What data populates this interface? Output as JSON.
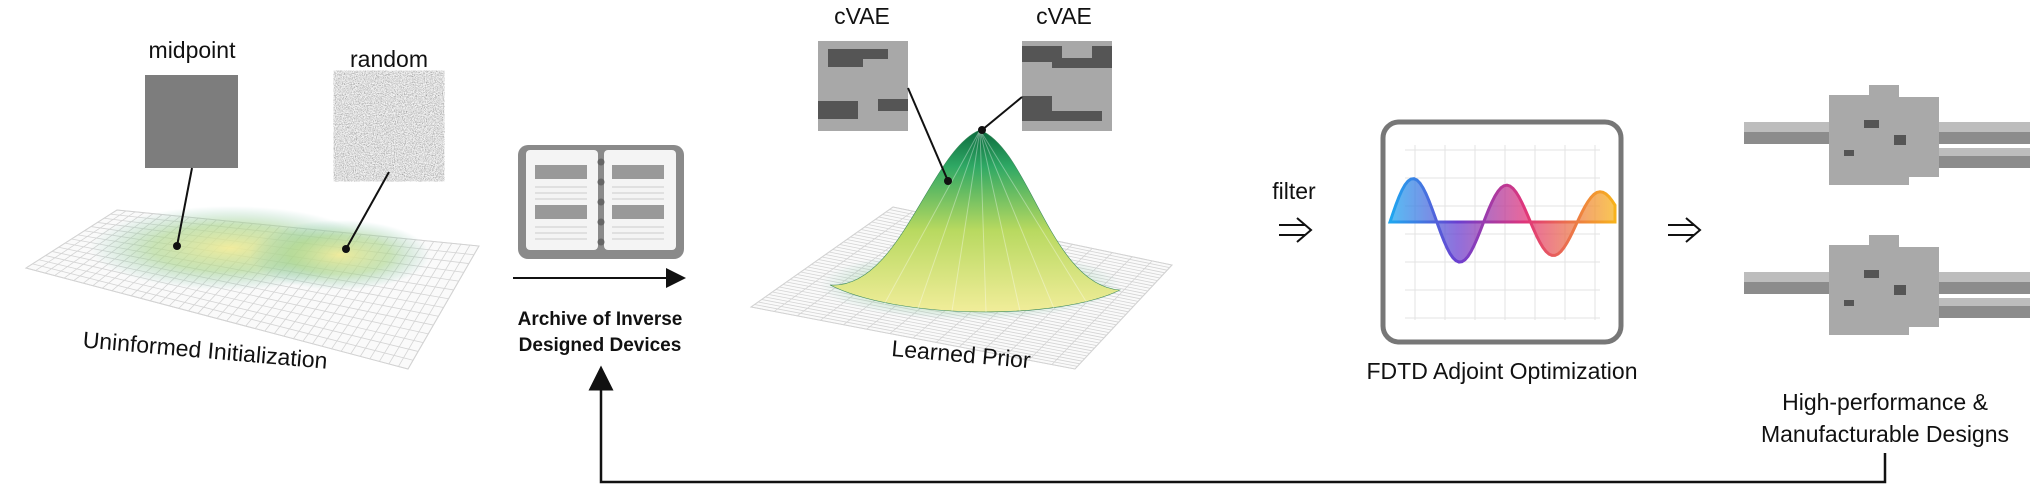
{
  "initialization": {
    "label": "Uninformed Initialization",
    "samples": [
      "midpoint",
      "random"
    ]
  },
  "archive": {
    "label_lines": [
      "Archive of Inverse",
      "Designed Devices"
    ]
  },
  "prior": {
    "label": "Learned Prior",
    "samples": [
      "cVAE",
      "cVAE"
    ]
  },
  "filter": "filter",
  "optimization": {
    "label": "FDTD Adjoint Optimization"
  },
  "designs": {
    "label_lines": [
      "High-performance &",
      "Manufacturable Designs"
    ]
  }
}
